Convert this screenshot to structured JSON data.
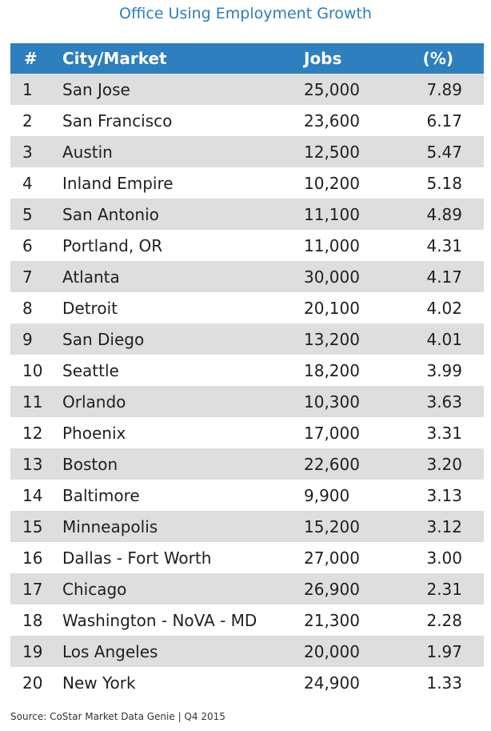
{
  "chart_data": {
    "type": "table",
    "title": "Office Using Employment Growth",
    "columns": [
      "#",
      "City/Market",
      "Jobs",
      "(%)"
    ],
    "rows": [
      {
        "rank": "1",
        "city": "San Jose",
        "jobs": "25,000",
        "pct": "7.89"
      },
      {
        "rank": "2",
        "city": "San Francisco",
        "jobs": "23,600",
        "pct": "6.17"
      },
      {
        "rank": "3",
        "city": "Austin",
        "jobs": "12,500",
        "pct": "5.47"
      },
      {
        "rank": "4",
        "city": "Inland Empire",
        "jobs": "10,200",
        "pct": "5.18"
      },
      {
        "rank": "5",
        "city": "San Antonio",
        "jobs": "11,100",
        "pct": "4.89"
      },
      {
        "rank": "6",
        "city": "Portland, OR",
        "jobs": "11,000",
        "pct": "4.31"
      },
      {
        "rank": "7",
        "city": "Atlanta",
        "jobs": "30,000",
        "pct": "4.17"
      },
      {
        "rank": "8",
        "city": "Detroit",
        "jobs": "20,100",
        "pct": "4.02"
      },
      {
        "rank": "9",
        "city": "San Diego",
        "jobs": "13,200",
        "pct": "4.01"
      },
      {
        "rank": "10",
        "city": "Seattle",
        "jobs": "18,200",
        "pct": "3.99"
      },
      {
        "rank": "11",
        "city": "Orlando",
        "jobs": "10,300",
        "pct": "3.63"
      },
      {
        "rank": "12",
        "city": "Phoenix",
        "jobs": "17,000",
        "pct": "3.31"
      },
      {
        "rank": "13",
        "city": "Boston",
        "jobs": "22,600",
        "pct": "3.20"
      },
      {
        "rank": "14",
        "city": "Baltimore",
        "jobs": "9,900",
        "pct": "3.13"
      },
      {
        "rank": "15",
        "city": "Minneapolis",
        "jobs": "15,200",
        "pct": "3.12"
      },
      {
        "rank": "16",
        "city": "Dallas - Fort Worth",
        "jobs": "27,000",
        "pct": "3.00"
      },
      {
        "rank": "17",
        "city": "Chicago",
        "jobs": "26,900",
        "pct": "2.31"
      },
      {
        "rank": "18",
        "city": "Washington - NoVA - MD",
        "jobs": "21,300",
        "pct": "2.28"
      },
      {
        "rank": "19",
        "city": "Los Angeles",
        "jobs": "20,000",
        "pct": "1.97"
      },
      {
        "rank": "20",
        "city": "New York",
        "jobs": "24,900",
        "pct": "1.33"
      }
    ],
    "source": "Source: CoStar Market Data Genie | Q4 2015"
  },
  "colors": {
    "title": "#2b7fb8",
    "header_bg": "#2d7fbd",
    "shade": "#dedede"
  }
}
